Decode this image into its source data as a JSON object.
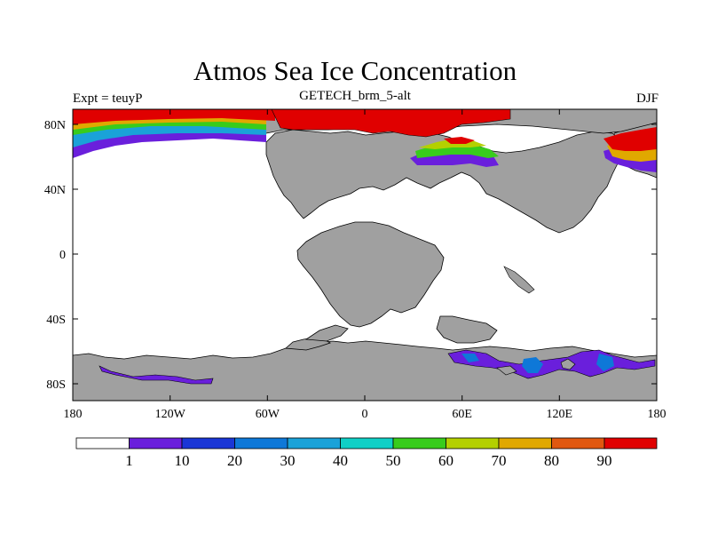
{
  "title": "Atmos Sea Ice Concentration",
  "subtitle_left": "Expt = teuyP",
  "subtitle_center": "GETECH_brm_5-alt",
  "subtitle_right": "DJF",
  "lat_labels": [
    "80N",
    "40N",
    "0",
    "40S",
    "80S"
  ],
  "lon_labels": [
    "180",
    "120W",
    "60W",
    "0",
    "60E",
    "120E",
    "180"
  ],
  "colors": {
    "land": "#a0a0a0",
    "ocean": "#ffffff",
    "levels": [
      "#ffffff",
      "#6a1fdc",
      "#1a36d6",
      "#0e78d8",
      "#1aa2d8",
      "#10d0c6",
      "#38cc1c",
      "#b4d000",
      "#e0a800",
      "#e05810",
      "#e00000"
    ]
  },
  "colorbar_labels": [
    "1",
    "10",
    "20",
    "30",
    "40",
    "50",
    "60",
    "70",
    "80",
    "90"
  ]
}
